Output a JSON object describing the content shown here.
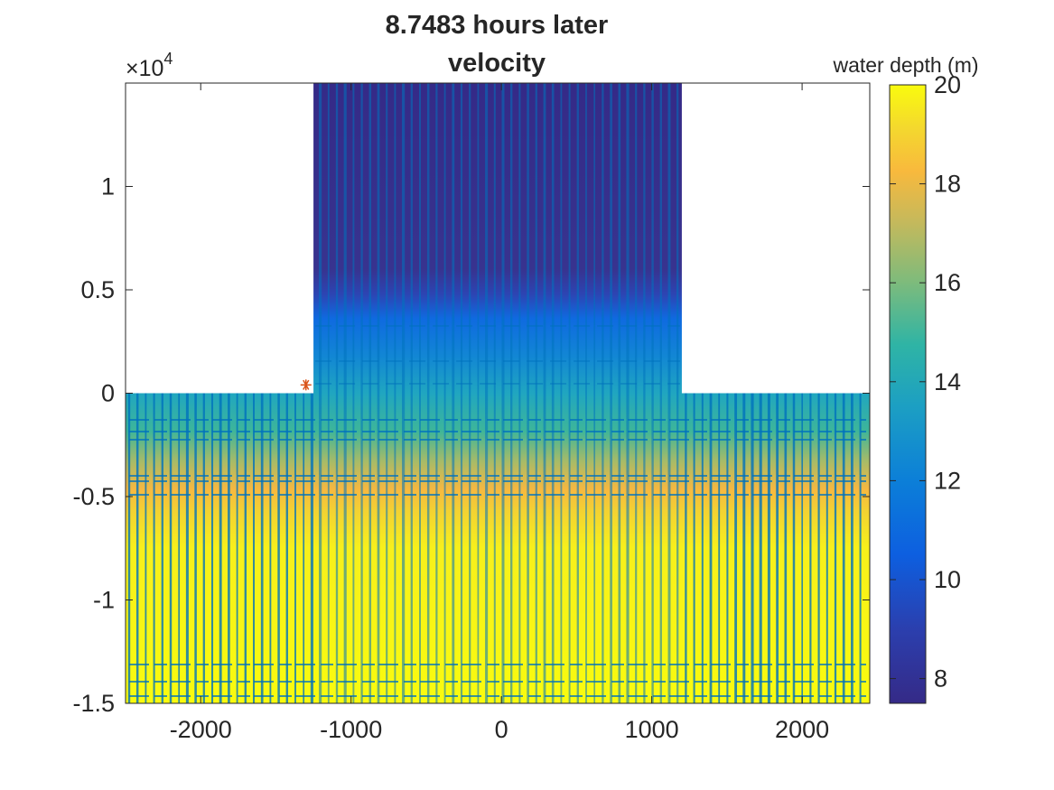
{
  "chart_data": {
    "type": "heatmap",
    "title": [
      "8.7483 hours later",
      "velocity"
    ],
    "xlabel": "",
    "ylabel": "",
    "xlim": [
      -2500,
      2450
    ],
    "ylim": [
      -15000,
      15000
    ],
    "x_ticks": [
      -2000,
      -1000,
      0,
      1000,
      2000
    ],
    "x_tick_labels": [
      "-2000",
      "-1000",
      "0",
      "1000",
      "2000"
    ],
    "y_ticks": [
      -15000,
      -10000,
      -5000,
      0,
      5000,
      10000
    ],
    "y_tick_labels": [
      "-1.5",
      "-1",
      "-0.5",
      "0",
      "0.5",
      "1"
    ],
    "y_exponent_label": "×10",
    "y_exponent_power": "4",
    "domain": {
      "channel_x_range": [
        -1250,
        1200
      ],
      "channel_y_range": [
        0,
        15000
      ],
      "basin_x_range": [
        -2500,
        2450
      ],
      "basin_y_range": [
        -15000,
        0
      ]
    },
    "depth_profile": [
      {
        "y": 15000,
        "depth": 8.0
      },
      {
        "y": 10000,
        "depth": 8.0
      },
      {
        "y": 7000,
        "depth": 8.5
      },
      {
        "y": 5000,
        "depth": 9.8
      },
      {
        "y": 3000,
        "depth": 11.0
      },
      {
        "y": 0,
        "depth": 13.0
      },
      {
        "y": -2000,
        "depth": 15.5
      },
      {
        "y": -4000,
        "depth": 17.5
      },
      {
        "y": -5000,
        "depth": 18.5
      },
      {
        "y": -7000,
        "depth": 19.8
      },
      {
        "y": -15000,
        "depth": 20.0
      }
    ],
    "marker": {
      "x": -1300,
      "y": 400,
      "symbol": "*",
      "color": "#d95319"
    },
    "quiver_color": "#0072bd",
    "colorbar": {
      "label": "water depth (m)",
      "range": [
        7.5,
        20
      ],
      "ticks": [
        8,
        10,
        12,
        14,
        16,
        18,
        20
      ],
      "tick_labels": [
        "8",
        "10",
        "12",
        "14",
        "16",
        "18",
        "20"
      ],
      "colormap": "parula"
    },
    "grid": false,
    "legend": "none"
  }
}
